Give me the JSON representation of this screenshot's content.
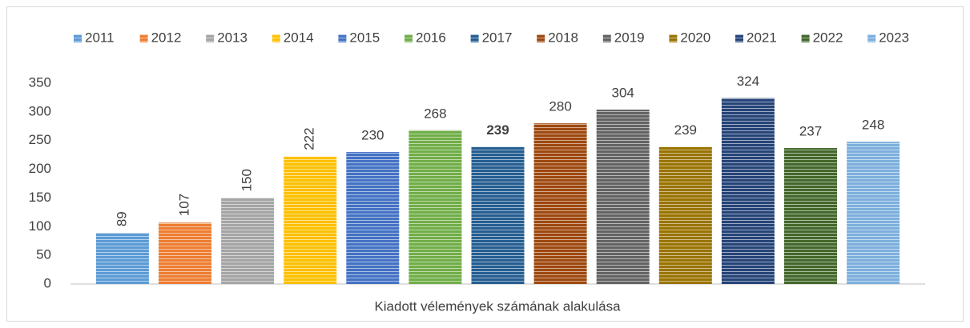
{
  "chart_data": {
    "type": "bar",
    "categories": [
      "Kiadott vélemények számának alakulása"
    ],
    "series": [
      {
        "name": "2011",
        "color": "#5b9bd5",
        "values": [
          89
        ]
      },
      {
        "name": "2012",
        "color": "#ed7d31",
        "values": [
          107
        ]
      },
      {
        "name": "2013",
        "color": "#a5a5a5",
        "values": [
          150
        ]
      },
      {
        "name": "2014",
        "color": "#ffc000",
        "values": [
          222
        ]
      },
      {
        "name": "2015",
        "color": "#4472c4",
        "values": [
          230
        ]
      },
      {
        "name": "2016",
        "color": "#70ad47",
        "values": [
          268
        ]
      },
      {
        "name": "2017",
        "color": "#255e91",
        "values": [
          239
        ]
      },
      {
        "name": "2018",
        "color": "#9e480e",
        "values": [
          280
        ]
      },
      {
        "name": "2019",
        "color": "#636363",
        "values": [
          304
        ]
      },
      {
        "name": "2020",
        "color": "#997300",
        "values": [
          239
        ]
      },
      {
        "name": "2021",
        "color": "#264478",
        "values": [
          324
        ]
      },
      {
        "name": "2022",
        "color": "#43682b",
        "values": [
          237
        ]
      },
      {
        "name": "2023",
        "color": "#7cafdd",
        "values": [
          248
        ]
      }
    ],
    "ylim": [
      0,
      350
    ],
    "yticks": [
      0,
      50,
      100,
      150,
      200,
      250,
      300,
      350
    ],
    "grid": false,
    "legend": "top"
  }
}
